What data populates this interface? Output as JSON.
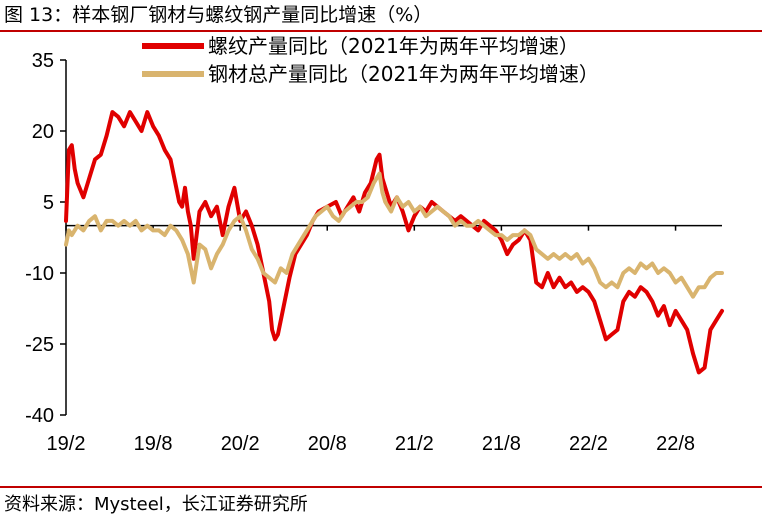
{
  "figure": {
    "title": "图 13：样本钢厂钢材与螺纹钢产量同比增速（%）",
    "source": "资料来源：Mysteel，长江证券研究所"
  },
  "chart_data": {
    "type": "line",
    "ylim": [
      -40,
      35
    ],
    "yticks": [
      "35",
      "20",
      "5",
      "-10",
      "-25",
      "-40"
    ],
    "xticks": [
      "19/2",
      "19/8",
      "20/2",
      "20/8",
      "21/2",
      "21/8",
      "22/2",
      "22/8"
    ],
    "legend": "top-right",
    "grid": false,
    "series": [
      {
        "name": "螺纹产量同比（2021年为两年平均增速）",
        "color": "#e00000",
        "points": [
          [
            0.0,
            1
          ],
          [
            0.1,
            16
          ],
          [
            0.2,
            17
          ],
          [
            0.3,
            12
          ],
          [
            0.4,
            9
          ],
          [
            0.6,
            6
          ],
          [
            0.8,
            10
          ],
          [
            1.0,
            14
          ],
          [
            1.2,
            15
          ],
          [
            1.4,
            19
          ],
          [
            1.6,
            24
          ],
          [
            1.8,
            23
          ],
          [
            2.0,
            21
          ],
          [
            2.2,
            24
          ],
          [
            2.4,
            22
          ],
          [
            2.6,
            20
          ],
          [
            2.8,
            24
          ],
          [
            3.0,
            21
          ],
          [
            3.2,
            19
          ],
          [
            3.4,
            16
          ],
          [
            3.6,
            14
          ],
          [
            3.8,
            8
          ],
          [
            3.9,
            5
          ],
          [
            4.0,
            4
          ],
          [
            4.1,
            8
          ],
          [
            4.2,
            3
          ],
          [
            4.3,
            0
          ],
          [
            4.4,
            -7
          ],
          [
            4.6,
            3
          ],
          [
            4.8,
            5
          ],
          [
            5.0,
            2
          ],
          [
            5.2,
            4
          ],
          [
            5.4,
            -2
          ],
          [
            5.6,
            4
          ],
          [
            5.8,
            8
          ],
          [
            6.0,
            1
          ],
          [
            6.2,
            3
          ],
          [
            6.4,
            0
          ],
          [
            6.6,
            -4
          ],
          [
            6.8,
            -10
          ],
          [
            7.0,
            -16
          ],
          [
            7.1,
            -22
          ],
          [
            7.2,
            -24
          ],
          [
            7.3,
            -23
          ],
          [
            7.5,
            -17
          ],
          [
            7.7,
            -11
          ],
          [
            7.9,
            -6
          ],
          [
            8.1,
            -4
          ],
          [
            8.3,
            -2
          ],
          [
            8.5,
            1
          ],
          [
            8.7,
            3
          ],
          [
            9.0,
            4
          ],
          [
            9.3,
            5
          ],
          [
            9.5,
            2
          ],
          [
            9.7,
            4
          ],
          [
            9.9,
            6
          ],
          [
            10.1,
            3
          ],
          [
            10.3,
            7
          ],
          [
            10.5,
            9
          ],
          [
            10.7,
            14
          ],
          [
            10.8,
            15
          ],
          [
            10.9,
            10
          ],
          [
            11.0,
            8
          ],
          [
            11.2,
            4
          ],
          [
            11.4,
            6
          ],
          [
            11.6,
            3
          ],
          [
            11.8,
            -1
          ],
          [
            12.0,
            2
          ],
          [
            12.2,
            4
          ],
          [
            12.4,
            3
          ],
          [
            12.6,
            5
          ],
          [
            12.8,
            4
          ],
          [
            13.0,
            3
          ],
          [
            13.2,
            2
          ],
          [
            13.4,
            1
          ],
          [
            13.6,
            2
          ],
          [
            13.8,
            1
          ],
          [
            14.0,
            0
          ],
          [
            14.2,
            -1
          ],
          [
            14.4,
            1
          ],
          [
            14.6,
            0
          ],
          [
            14.8,
            -1
          ],
          [
            15.0,
            -3
          ],
          [
            15.2,
            -6
          ],
          [
            15.4,
            -4
          ],
          [
            15.6,
            -3
          ],
          [
            15.8,
            -1
          ],
          [
            16.0,
            -3
          ],
          [
            16.2,
            -12
          ],
          [
            16.4,
            -13
          ],
          [
            16.6,
            -10
          ],
          [
            16.8,
            -13
          ],
          [
            17.0,
            -11
          ],
          [
            17.2,
            -13
          ],
          [
            17.4,
            -12
          ],
          [
            17.6,
            -14
          ],
          [
            17.8,
            -13
          ],
          [
            18.0,
            -14
          ],
          [
            18.2,
            -16
          ],
          [
            18.4,
            -20
          ],
          [
            18.6,
            -24
          ],
          [
            18.8,
            -23
          ],
          [
            19.0,
            -22
          ],
          [
            19.2,
            -16
          ],
          [
            19.4,
            -14
          ],
          [
            19.6,
            -15
          ],
          [
            19.8,
            -13
          ],
          [
            20.0,
            -14
          ],
          [
            20.2,
            -16
          ],
          [
            20.4,
            -19
          ],
          [
            20.6,
            -17
          ],
          [
            20.8,
            -21
          ],
          [
            21.0,
            -18
          ],
          [
            21.2,
            -20
          ],
          [
            21.4,
            -22
          ],
          [
            21.6,
            -27
          ],
          [
            21.8,
            -31
          ],
          [
            22.0,
            -30
          ],
          [
            22.2,
            -22
          ],
          [
            22.4,
            -20
          ],
          [
            22.6,
            -18
          ]
        ]
      },
      {
        "name": "钢材总产量同比（2021年为两年平均增速）",
        "color": "#d9b46e",
        "points": [
          [
            0.0,
            -4
          ],
          [
            0.1,
            -1
          ],
          [
            0.2,
            -2
          ],
          [
            0.4,
            0
          ],
          [
            0.6,
            -1
          ],
          [
            0.8,
            1
          ],
          [
            1.0,
            2
          ],
          [
            1.2,
            -1
          ],
          [
            1.4,
            1
          ],
          [
            1.6,
            1
          ],
          [
            1.8,
            0
          ],
          [
            2.0,
            1
          ],
          [
            2.2,
            0
          ],
          [
            2.4,
            1
          ],
          [
            2.6,
            -1
          ],
          [
            2.8,
            0
          ],
          [
            3.0,
            -1
          ],
          [
            3.2,
            -1
          ],
          [
            3.4,
            -2
          ],
          [
            3.6,
            0
          ],
          [
            3.8,
            -1
          ],
          [
            4.0,
            -3
          ],
          [
            4.2,
            -6
          ],
          [
            4.4,
            -12
          ],
          [
            4.5,
            -8
          ],
          [
            4.6,
            -4
          ],
          [
            4.8,
            -5
          ],
          [
            5.0,
            -9
          ],
          [
            5.2,
            -6
          ],
          [
            5.4,
            -4
          ],
          [
            5.6,
            -1
          ],
          [
            5.8,
            1
          ],
          [
            6.0,
            2
          ],
          [
            6.2,
            -1
          ],
          [
            6.4,
            -5
          ],
          [
            6.6,
            -7
          ],
          [
            6.8,
            -10
          ],
          [
            7.0,
            -11
          ],
          [
            7.2,
            -12
          ],
          [
            7.4,
            -9
          ],
          [
            7.6,
            -10
          ],
          [
            7.8,
            -6
          ],
          [
            8.0,
            -4
          ],
          [
            8.2,
            -2
          ],
          [
            8.4,
            0
          ],
          [
            8.6,
            2
          ],
          [
            8.8,
            3
          ],
          [
            9.0,
            4
          ],
          [
            9.2,
            2
          ],
          [
            9.4,
            1
          ],
          [
            9.6,
            3
          ],
          [
            9.8,
            4
          ],
          [
            10.0,
            5
          ],
          [
            10.2,
            5
          ],
          [
            10.4,
            6
          ],
          [
            10.6,
            9
          ],
          [
            10.8,
            11
          ],
          [
            10.9,
            7
          ],
          [
            11.0,
            5
          ],
          [
            11.2,
            3
          ],
          [
            11.4,
            6
          ],
          [
            11.6,
            4
          ],
          [
            11.8,
            5
          ],
          [
            12.0,
            3
          ],
          [
            12.2,
            4
          ],
          [
            12.4,
            2
          ],
          [
            12.6,
            3
          ],
          [
            12.8,
            4
          ],
          [
            13.0,
            3
          ],
          [
            13.2,
            2
          ],
          [
            13.4,
            0
          ],
          [
            13.6,
            1
          ],
          [
            13.8,
            0
          ],
          [
            14.0,
            0
          ],
          [
            14.2,
            1
          ],
          [
            14.4,
            0
          ],
          [
            14.6,
            -1
          ],
          [
            14.8,
            -2
          ],
          [
            15.0,
            -2
          ],
          [
            15.2,
            -3
          ],
          [
            15.4,
            -2
          ],
          [
            15.6,
            -2
          ],
          [
            15.8,
            -1
          ],
          [
            16.0,
            -2
          ],
          [
            16.2,
            -5
          ],
          [
            16.4,
            -6
          ],
          [
            16.6,
            -7
          ],
          [
            16.8,
            -6
          ],
          [
            17.0,
            -7
          ],
          [
            17.2,
            -6
          ],
          [
            17.4,
            -7
          ],
          [
            17.6,
            -6
          ],
          [
            17.8,
            -8
          ],
          [
            18.0,
            -7
          ],
          [
            18.2,
            -9
          ],
          [
            18.4,
            -12
          ],
          [
            18.6,
            -13
          ],
          [
            18.8,
            -12
          ],
          [
            19.0,
            -13
          ],
          [
            19.2,
            -10
          ],
          [
            19.4,
            -9
          ],
          [
            19.6,
            -10
          ],
          [
            19.8,
            -8
          ],
          [
            20.0,
            -9
          ],
          [
            20.2,
            -8
          ],
          [
            20.4,
            -10
          ],
          [
            20.6,
            -9
          ],
          [
            20.8,
            -10
          ],
          [
            21.0,
            -12
          ],
          [
            21.2,
            -11
          ],
          [
            21.4,
            -13
          ],
          [
            21.6,
            -15
          ],
          [
            21.8,
            -13
          ],
          [
            22.0,
            -13
          ],
          [
            22.2,
            -11
          ],
          [
            22.4,
            -10
          ],
          [
            22.6,
            -10
          ]
        ]
      }
    ]
  }
}
